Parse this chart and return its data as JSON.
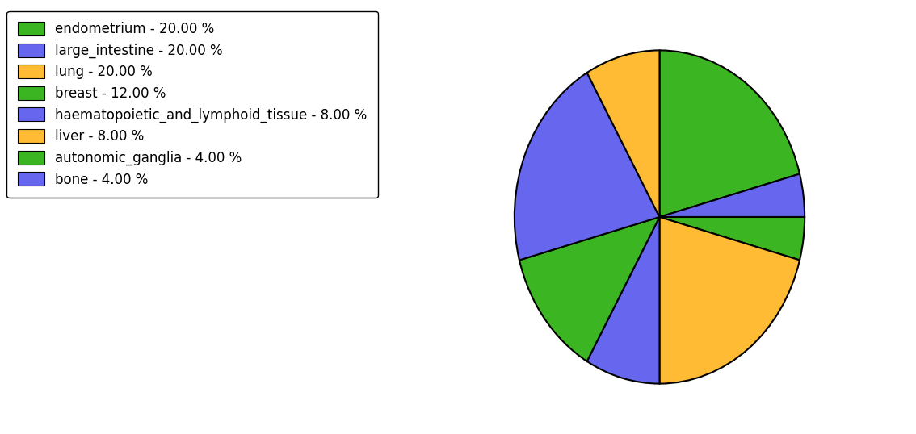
{
  "labels": [
    "endometrium - 20.00 %",
    "large_intestine - 20.00 %",
    "lung - 20.00 %",
    "breast - 12.00 %",
    "haematopoietic_and_lymphoid_tissue - 8.00 %",
    "liver - 8.00 %",
    "autonomic_ganglia - 4.00 %",
    "bone - 4.00 %"
  ],
  "sizes": [
    20,
    20,
    20,
    12,
    8,
    8,
    4,
    4
  ],
  "pie_order_sizes": [
    20,
    4,
    4,
    20,
    8,
    12,
    20,
    8
  ],
  "pie_order_colors": [
    "#3cb522",
    "#6666ee",
    "#3cb522",
    "#ffbb33",
    "#6666ee",
    "#3cb522",
    "#6666ee",
    "#ffbb33"
  ],
  "legend_colors": [
    "#3cb522",
    "#6666ee",
    "#ffbb33",
    "#3cb522",
    "#6666ee",
    "#ffbb33",
    "#3cb522",
    "#6666ee"
  ],
  "startangle": 90,
  "edge_color": "black",
  "edge_linewidth": 1.5,
  "figsize": [
    11.34,
    5.38
  ],
  "dpi": 100,
  "legend_fontsize": 12
}
